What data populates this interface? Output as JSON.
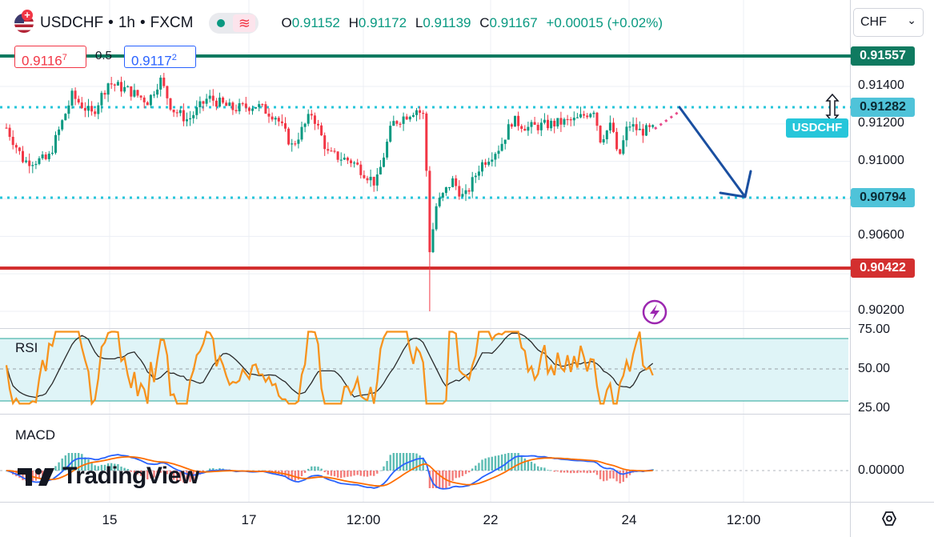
{
  "header": {
    "symbol": "USDCHF",
    "sep1": "•",
    "interval": "1h",
    "sep2": "•",
    "exchange": "FXCM",
    "open_label": "O",
    "open": "0.91152",
    "high_label": "H",
    "high": "0.91172",
    "low_label": "L",
    "low": "0.91139",
    "close_label": "C",
    "close": "0.91167",
    "change": "+0.00015 (+0.02%)"
  },
  "trade": {
    "sell_price": "0.9116",
    "sell_sup": "7",
    "spread": "0.5",
    "buy_price": "0.9117",
    "buy_sup": "2"
  },
  "currency_select": {
    "value": "CHF",
    "caret": "⌄"
  },
  "price_axis": {
    "ticks": [
      "0.91400",
      "0.91200",
      "0.91000",
      "0.90600",
      "0.90200"
    ],
    "tags": {
      "level_top": "0.91557",
      "level_upper": "0.91282",
      "level_lower": "0.90794",
      "level_bottom": "0.90422",
      "symbol_tag": "USDCHF"
    }
  },
  "rsi": {
    "label": "RSI",
    "ticks": [
      "75.00",
      "50.00",
      "25.00"
    ]
  },
  "macd": {
    "label": "MACD",
    "tick": "0.00000"
  },
  "time_axis": {
    "labels": [
      "15",
      "17",
      "12:00",
      "22",
      "24",
      "12:00"
    ]
  },
  "watermark": {
    "text": "TradingView"
  },
  "colors": {
    "up": "#089981",
    "down": "#f23645",
    "teal_level": "#0f7a60",
    "red_level": "#d32f2f",
    "cyan_level": "#26c6da",
    "arrow": "#1a4fa0",
    "rsi_line": "#f7931e",
    "rsi_ma": "#2a2a2a",
    "macd_line": "#2962ff",
    "signal_line": "#ff6d00"
  },
  "chart_data": {
    "type": "candlestick",
    "y_axis_ticks": [
      0.914,
      0.912,
      0.91,
      0.906,
      0.902
    ],
    "horizontal_levels": [
      0.91557,
      0.91282,
      0.90794,
      0.90422
    ],
    "last_price": 0.91167,
    "rsi_bounds": [
      70,
      30
    ],
    "rsi_ticks": [
      75,
      50,
      25
    ]
  }
}
